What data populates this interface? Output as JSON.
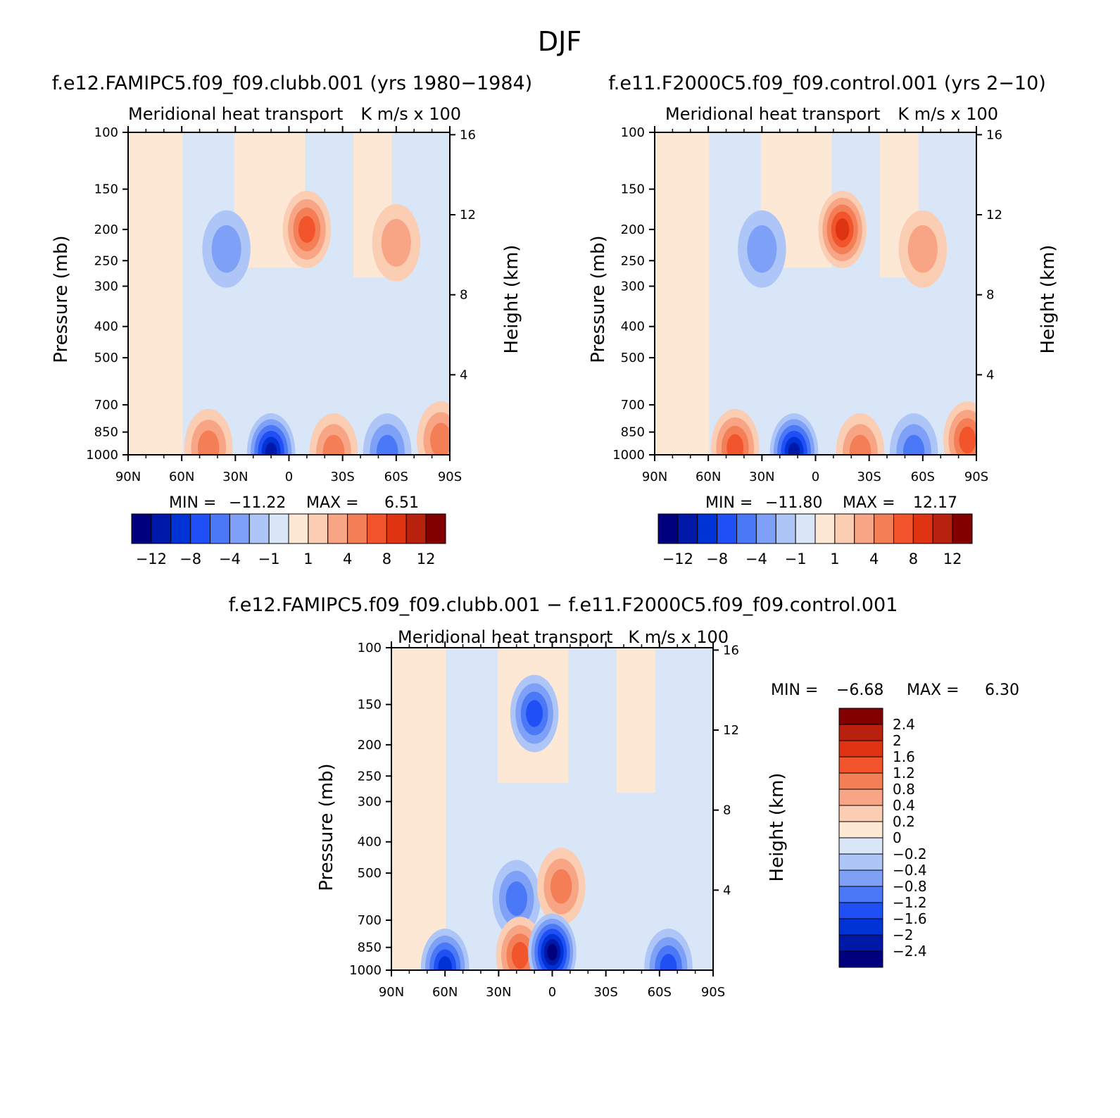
{
  "page_title": "DJF",
  "colors": {
    "neg_scale": [
      "#00007f",
      "#0018a8",
      "#0033d6",
      "#1f4ff5",
      "#4a78f7",
      "#7ea1f7",
      "#aec6f7",
      "#d8e6f8"
    ],
    "pos_scale": [
      "#fde8d6",
      "#fbcdb2",
      "#f7a584",
      "#f47e55",
      "#f2542b",
      "#de3412",
      "#b8210d",
      "#820000"
    ],
    "frame": "#000000"
  },
  "chart_data": [
    {
      "type": "contour",
      "header": "f.e12.FAMIPC5.f09_f09.clubb.001 (yrs 1980−1984)",
      "title": "Meridional heat transport",
      "units": "K m/s x 100",
      "ylabel": "Pressure (mb)",
      "ylabel_right": "Height (km)",
      "yticks": [
        "100",
        "150",
        "200",
        "250",
        "300",
        "400",
        "500",
        "700",
        "850",
        "1000"
      ],
      "yticks_right": [
        "16",
        "12",
        "8",
        "4"
      ],
      "xticks": [
        "90N",
        "60N",
        "30N",
        "0",
        "30S",
        "60S",
        "90S"
      ],
      "stats": {
        "min_label": "MIN =",
        "min": "−11.22",
        "max_label": "MAX =",
        "max": "6.51"
      },
      "colorbar_labels": [
        "−12",
        "−8",
        "−4",
        "−1",
        "1",
        "4",
        "8",
        "12"
      ],
      "features": [
        {
          "lat": -10,
          "p": 200,
          "value": 6.5
        },
        {
          "lat": 35,
          "p": 230,
          "value": -2
        },
        {
          "lat": -60,
          "p": 220,
          "value": 2
        },
        {
          "lat": 10,
          "p": 980,
          "value": -11.22
        },
        {
          "lat": 45,
          "p": 950,
          "value": 4
        },
        {
          "lat": -25,
          "p": 990,
          "value": 4
        },
        {
          "lat": -55,
          "p": 990,
          "value": -4
        },
        {
          "lat": -85,
          "p": 900,
          "value": 5
        }
      ]
    },
    {
      "type": "contour",
      "header": "f.e11.F2000C5.f09_f09.control.001 (yrs 2−10)",
      "title": "Meridional heat transport",
      "units": "K m/s x 100",
      "ylabel": "Pressure (mb)",
      "ylabel_right": "Height (km)",
      "yticks": [
        "100",
        "150",
        "200",
        "250",
        "300",
        "400",
        "500",
        "700",
        "850",
        "1000"
      ],
      "yticks_right": [
        "16",
        "12",
        "8",
        "4"
      ],
      "xticks": [
        "90N",
        "60N",
        "30N",
        "0",
        "30S",
        "60S",
        "90S"
      ],
      "stats": {
        "min_label": "MIN =",
        "min": "−11.80",
        "max_label": "MAX =",
        "max": "12.17"
      },
      "colorbar_labels": [
        "−12",
        "−8",
        "−4",
        "−1",
        "1",
        "4",
        "8",
        "12"
      ],
      "features": [
        {
          "lat": -15,
          "p": 200,
          "value": 8
        },
        {
          "lat": 30,
          "p": 230,
          "value": -2
        },
        {
          "lat": -60,
          "p": 230,
          "value": 2
        },
        {
          "lat": 12,
          "p": 980,
          "value": -11.8
        },
        {
          "lat": 45,
          "p": 950,
          "value": 6
        },
        {
          "lat": -25,
          "p": 990,
          "value": 5
        },
        {
          "lat": -55,
          "p": 990,
          "value": -5
        },
        {
          "lat": -85,
          "p": 900,
          "value": 6
        }
      ]
    },
    {
      "type": "contour",
      "header": "f.e12.FAMIPC5.f09_f09.clubb.001 − f.e11.F2000C5.f09_f09.control.001",
      "title": "Meridional heat transport",
      "units": "K m/s x 100",
      "ylabel": "Pressure (mb)",
      "ylabel_right": "Height (km)",
      "yticks": [
        "100",
        "150",
        "200",
        "250",
        "300",
        "400",
        "500",
        "700",
        "850",
        "1000"
      ],
      "yticks_right": [
        "16",
        "12",
        "8",
        "4"
      ],
      "xticks": [
        "90N",
        "60N",
        "30N",
        "0",
        "30S",
        "60S",
        "90S"
      ],
      "stats": {
        "min_label": "MIN =",
        "min": "−6.68",
        "max_label": "MAX =",
        "max": "6.30"
      },
      "colorbar_labels": [
        "2.4",
        "2",
        "1.6",
        "1.2",
        "0.8",
        "0.4",
        "0.2",
        "0",
        "−0.2",
        "−0.4",
        "−0.8",
        "−1.2",
        "−1.6",
        "−2",
        "−2.4"
      ],
      "features": [
        {
          "lat": 20,
          "p": 600,
          "value": -0.8
        },
        {
          "lat": -5,
          "p": 550,
          "value": 0.8
        },
        {
          "lat": 10,
          "p": 160,
          "value": -1.2
        },
        {
          "lat": 18,
          "p": 900,
          "value": 1.2
        },
        {
          "lat": 0,
          "p": 880,
          "value": -2.4
        },
        {
          "lat": 60,
          "p": 990,
          "value": -1.6
        },
        {
          "lat": -65,
          "p": 990,
          "value": -1.2
        }
      ]
    }
  ]
}
